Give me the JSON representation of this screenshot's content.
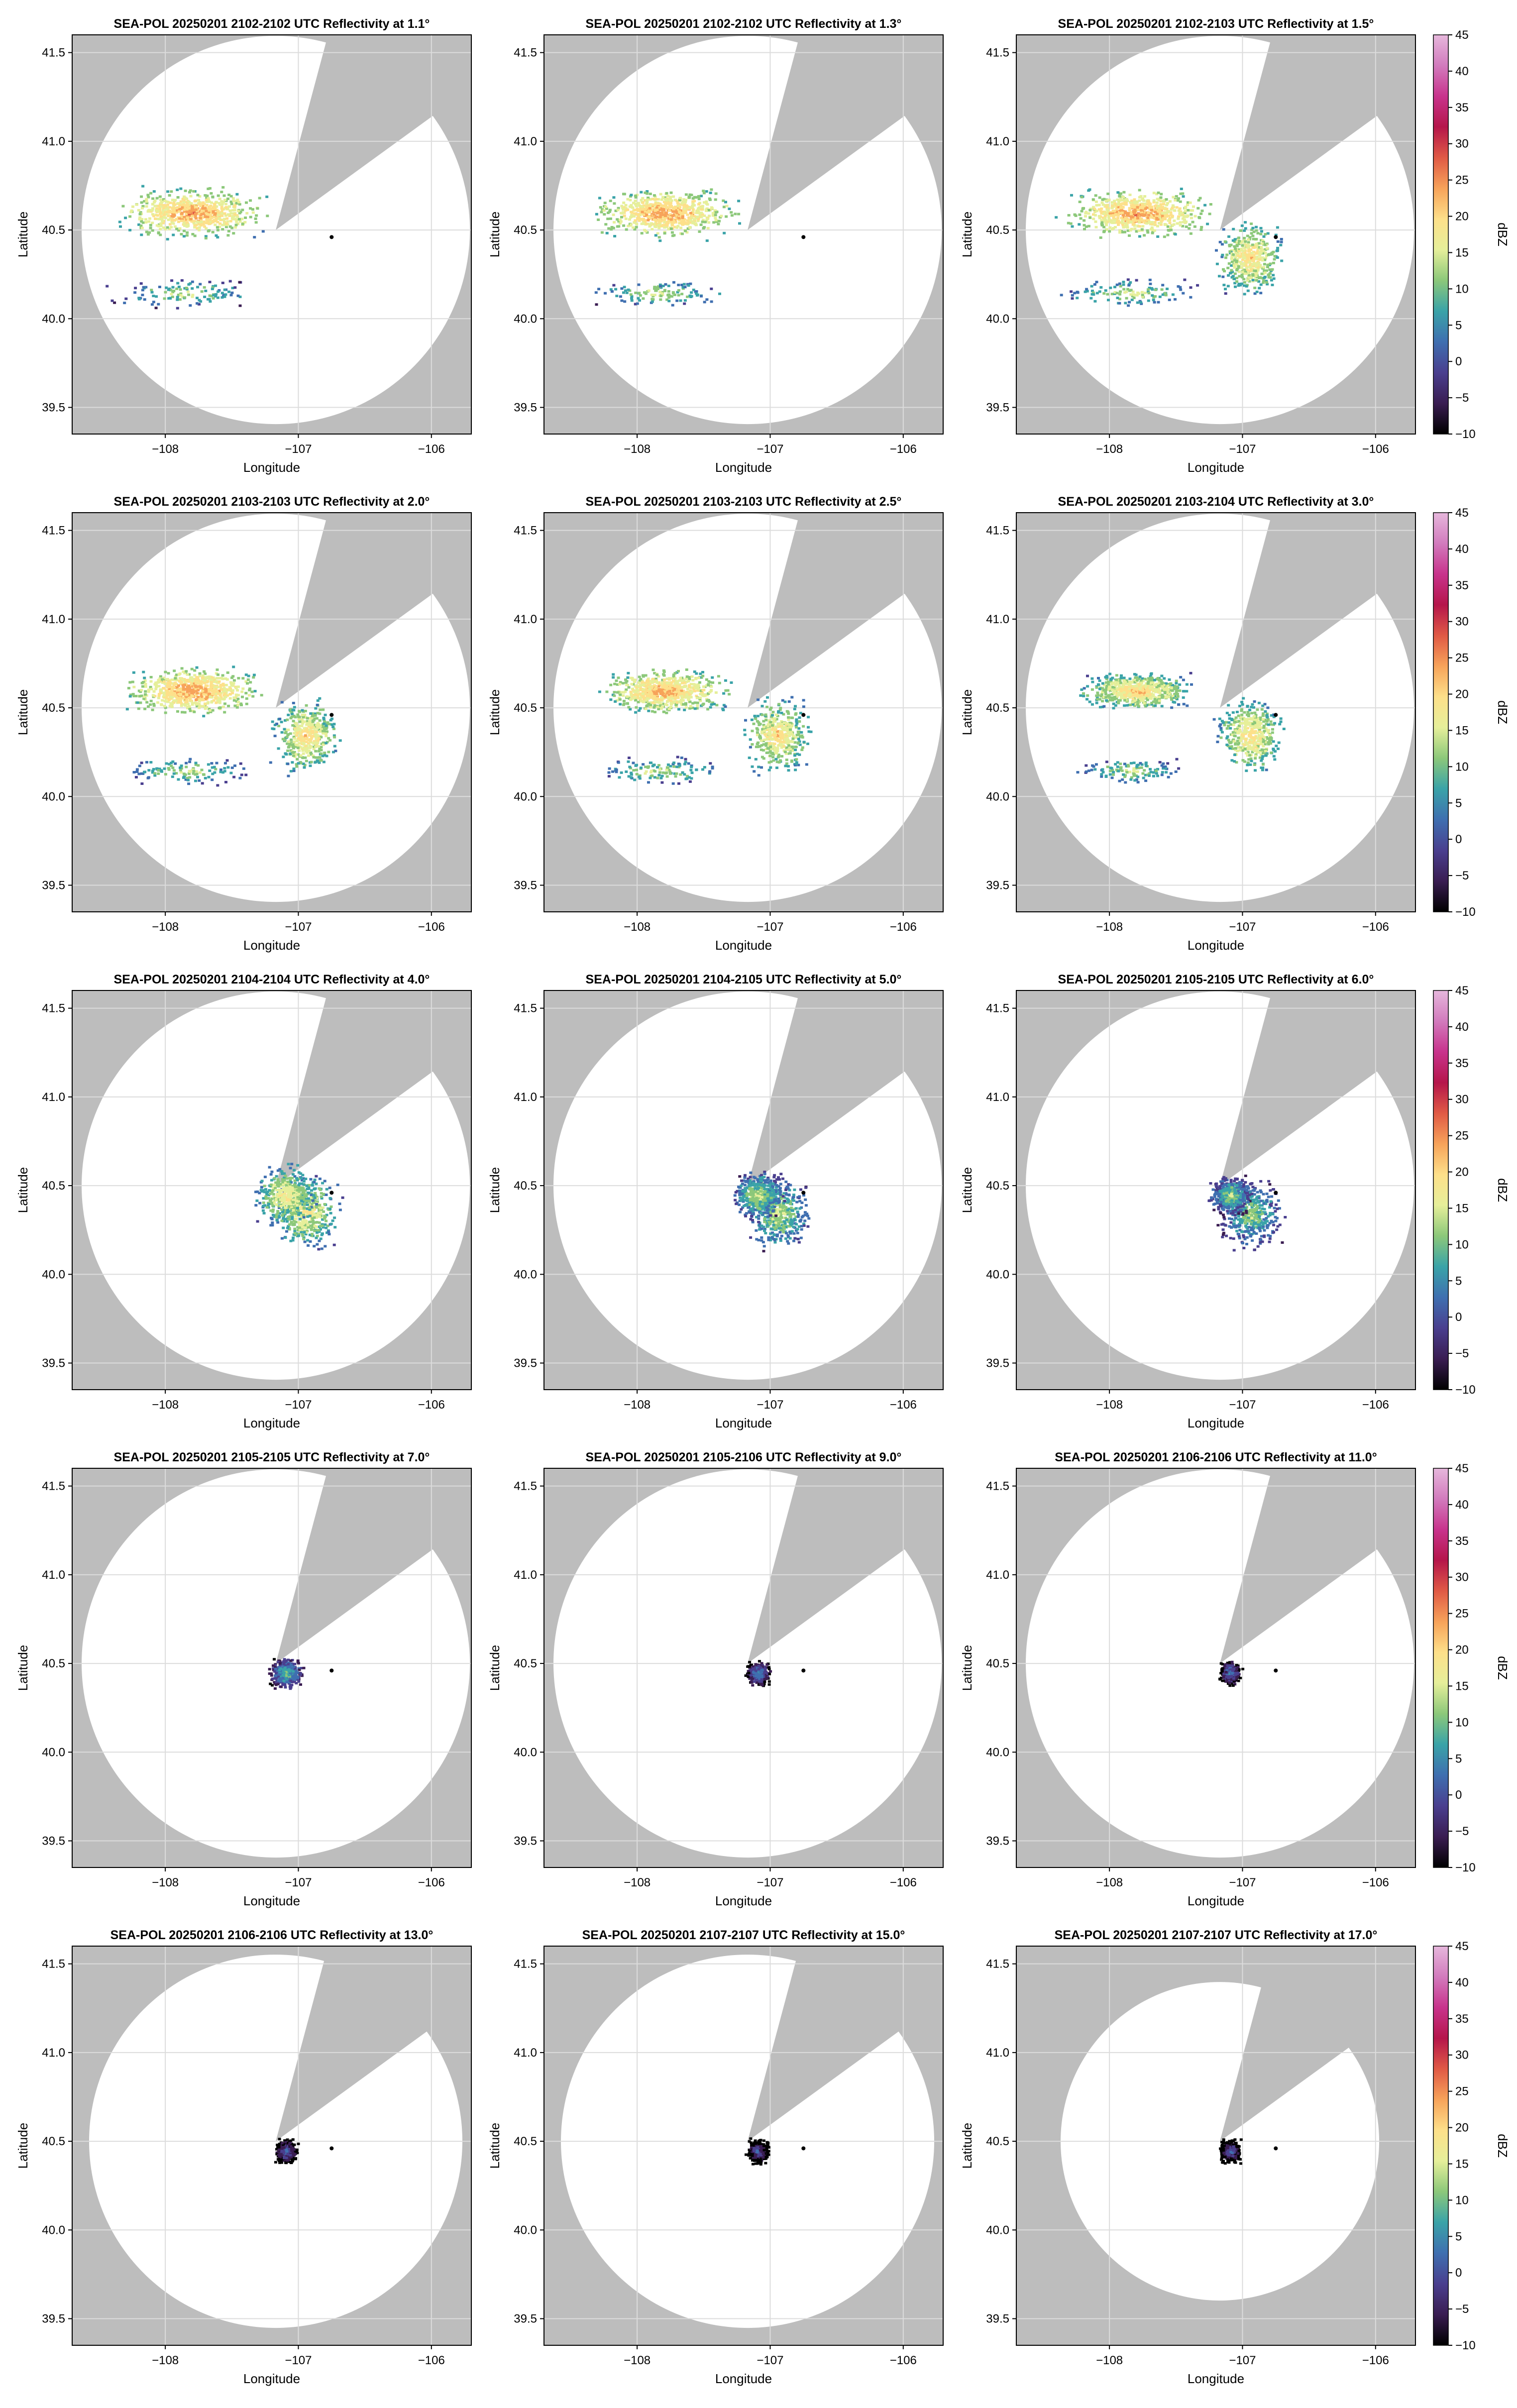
{
  "figure": {
    "colorbar_label": "dBZ",
    "colorbar_ticks": [
      "45",
      "40",
      "35",
      "30",
      "25",
      "20",
      "15",
      "10",
      "5",
      "0",
      "−5",
      "−10"
    ],
    "panel_xlabel": "Longitude",
    "panel_ylabel": "Latitude",
    "x_ticks": [
      "−108",
      "−107",
      "−106"
    ],
    "y_ticks": [
      "41.5",
      "41.0",
      "40.5",
      "40.0",
      "39.5"
    ]
  },
  "colors": {
    "no_data_mask": "#bdbdbd",
    "radar_coverage": "#ffffff",
    "grid": "#dcdcdc",
    "colormap_low_to_high": [
      "#000000",
      "#3a1d52",
      "#4a3f8f",
      "#3f6fb0",
      "#3aa3a8",
      "#8cc87a",
      "#e6ef9a",
      "#fde08a",
      "#f7a35a",
      "#e05a45",
      "#b5164b",
      "#c8338c",
      "#d27bbd",
      "#e6b7dc"
    ]
  },
  "chart_data": [
    {
      "type": "heatmap",
      "title": "SEA-POL 20250201 2102-2102 UTC Reflectivity at 1.1°",
      "xlabel": "Longitude",
      "ylabel": "Latitude",
      "units": "dBZ",
      "xlim": [
        -108.7,
        -105.7
      ],
      "ylim": [
        39.35,
        41.6
      ],
      "radar_location": [
        -107.17,
        40.5
      ],
      "marker_location": [
        -106.75,
        40.46
      ],
      "echo_top_dbz": 28,
      "echo_spread": 1.0
    },
    {
      "type": "heatmap",
      "title": "SEA-POL 20250201 2102-2102 UTC Reflectivity at 1.3°",
      "xlabel": "Longitude",
      "ylabel": "Latitude",
      "units": "dBZ",
      "xlim": [
        -108.7,
        -105.7
      ],
      "ylim": [
        39.35,
        41.6
      ],
      "radar_location": [
        -107.17,
        40.5
      ],
      "marker_location": [
        -106.75,
        40.46
      ],
      "echo_top_dbz": 28,
      "echo_spread": 1.0
    },
    {
      "type": "heatmap",
      "title": "SEA-POL 20250201 2102-2103 UTC Reflectivity at 1.5°",
      "xlabel": "Longitude",
      "ylabel": "Latitude",
      "units": "dBZ",
      "xlim": [
        -108.7,
        -105.7
      ],
      "ylim": [
        39.35,
        41.6
      ],
      "radar_location": [
        -107.17,
        40.5
      ],
      "marker_location": [
        -106.75,
        40.46
      ],
      "echo_top_dbz": 28,
      "echo_spread": 1.0
    },
    {
      "type": "heatmap",
      "title": "SEA-POL 20250201 2103-2103 UTC Reflectivity at 2.0°",
      "xlabel": "Longitude",
      "ylabel": "Latitude",
      "units": "dBZ",
      "xlim": [
        -108.7,
        -105.7
      ],
      "ylim": [
        39.35,
        41.6
      ],
      "radar_location": [
        -107.17,
        40.5
      ],
      "marker_location": [
        -106.75,
        40.46
      ],
      "echo_top_dbz": 28,
      "echo_spread": 0.95
    },
    {
      "type": "heatmap",
      "title": "SEA-POL 20250201 2103-2103 UTC Reflectivity at 2.5°",
      "xlabel": "Longitude",
      "ylabel": "Latitude",
      "units": "dBZ",
      "xlim": [
        -108.7,
        -105.7
      ],
      "ylim": [
        39.35,
        41.6
      ],
      "radar_location": [
        -107.17,
        40.5
      ],
      "marker_location": [
        -106.75,
        40.46
      ],
      "echo_top_dbz": 27,
      "echo_spread": 0.9
    },
    {
      "type": "heatmap",
      "title": "SEA-POL 20250201 2103-2104 UTC Reflectivity at 3.0°",
      "xlabel": "Longitude",
      "ylabel": "Latitude",
      "units": "dBZ",
      "xlim": [
        -108.7,
        -105.7
      ],
      "ylim": [
        39.35,
        41.6
      ],
      "radar_location": [
        -107.17,
        40.5
      ],
      "marker_location": [
        -106.75,
        40.46
      ],
      "echo_top_dbz": 25,
      "echo_spread": 0.75
    },
    {
      "type": "heatmap",
      "title": "SEA-POL 20250201 2104-2104 UTC Reflectivity at 4.0°",
      "xlabel": "Longitude",
      "ylabel": "Latitude",
      "units": "dBZ",
      "xlim": [
        -108.7,
        -105.7
      ],
      "ylim": [
        39.35,
        41.6
      ],
      "radar_location": [
        -107.17,
        40.5
      ],
      "marker_location": [
        -106.75,
        40.46
      ],
      "echo_top_dbz": 22,
      "echo_spread": 0.5
    },
    {
      "type": "heatmap",
      "title": "SEA-POL 20250201 2104-2105 UTC Reflectivity at 5.0°",
      "xlabel": "Longitude",
      "ylabel": "Latitude",
      "units": "dBZ",
      "xlim": [
        -108.7,
        -105.7
      ],
      "ylim": [
        39.35,
        41.6
      ],
      "radar_location": [
        -107.17,
        40.5
      ],
      "marker_location": [
        -106.75,
        40.46
      ],
      "echo_top_dbz": 18,
      "echo_spread": 0.4
    },
    {
      "type": "heatmap",
      "title": "SEA-POL 20250201 2105-2105 UTC Reflectivity at 6.0°",
      "xlabel": "Longitude",
      "ylabel": "Latitude",
      "units": "dBZ",
      "xlim": [
        -108.7,
        -105.7
      ],
      "ylim": [
        39.35,
        41.6
      ],
      "radar_location": [
        -107.17,
        40.5
      ],
      "marker_location": [
        -106.75,
        40.46
      ],
      "echo_top_dbz": 16,
      "echo_spread": 0.33
    },
    {
      "type": "heatmap",
      "title": "SEA-POL 20250201 2105-2105 UTC Reflectivity at 7.0°",
      "xlabel": "Longitude",
      "ylabel": "Latitude",
      "units": "dBZ",
      "xlim": [
        -108.7,
        -105.7
      ],
      "ylim": [
        39.35,
        41.6
      ],
      "radar_location": [
        -107.17,
        40.5
      ],
      "marker_location": [
        -106.75,
        40.46
      ],
      "echo_top_dbz": 14,
      "echo_spread": 0.25
    },
    {
      "type": "heatmap",
      "title": "SEA-POL 20250201 2105-2106 UTC Reflectivity at 9.0°",
      "xlabel": "Longitude",
      "ylabel": "Latitude",
      "units": "dBZ",
      "xlim": [
        -108.7,
        -105.7
      ],
      "ylim": [
        39.35,
        41.6
      ],
      "radar_location": [
        -107.17,
        40.5
      ],
      "marker_location": [
        -106.75,
        40.46
      ],
      "echo_top_dbz": 10,
      "echo_spread": 0.18
    },
    {
      "type": "heatmap",
      "title": "SEA-POL 20250201 2106-2106 UTC Reflectivity at 11.0°",
      "xlabel": "Longitude",
      "ylabel": "Latitude",
      "units": "dBZ",
      "xlim": [
        -108.7,
        -105.7
      ],
      "ylim": [
        39.35,
        41.6
      ],
      "radar_location": [
        -107.17,
        40.5
      ],
      "marker_location": [
        -106.75,
        40.46
      ],
      "echo_top_dbz": 8,
      "echo_spread": 0.14
    },
    {
      "type": "heatmap",
      "title": "SEA-POL 20250201 2106-2106 UTC Reflectivity at 13.0°",
      "xlabel": "Longitude",
      "ylabel": "Latitude",
      "units": "dBZ",
      "xlim": [
        -108.7,
        -105.7
      ],
      "ylim": [
        39.35,
        41.6
      ],
      "radar_location": [
        -107.17,
        40.5
      ],
      "marker_location": [
        -106.75,
        40.46
      ],
      "echo_top_dbz": 6,
      "echo_spread": 0.11
    },
    {
      "type": "heatmap",
      "title": "SEA-POL 20250201 2107-2107 UTC Reflectivity at 15.0°",
      "xlabel": "Longitude",
      "ylabel": "Latitude",
      "units": "dBZ",
      "xlim": [
        -108.7,
        -105.7
      ],
      "ylim": [
        39.35,
        41.6
      ],
      "radar_location": [
        -107.17,
        40.5
      ],
      "marker_location": [
        -106.75,
        40.46
      ],
      "echo_top_dbz": 5,
      "echo_spread": 0.1
    },
    {
      "type": "heatmap",
      "title": "SEA-POL 20250201 2107-2107 UTC Reflectivity at 17.0°",
      "xlabel": "Longitude",
      "ylabel": "Latitude",
      "units": "dBZ",
      "xlim": [
        -108.7,
        -105.7
      ],
      "ylim": [
        39.35,
        41.6
      ],
      "radar_location": [
        -107.17,
        40.5
      ],
      "marker_location": [
        -106.75,
        40.46
      ],
      "echo_top_dbz": 5,
      "echo_spread": 0.1
    }
  ]
}
